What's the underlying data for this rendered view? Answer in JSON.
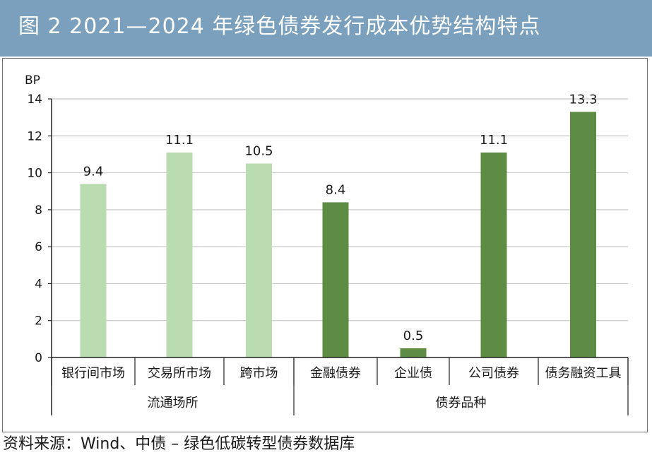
{
  "header": {
    "title": "图 2  2021—2024 年绿色债券发行成本优势结构特点"
  },
  "footer": {
    "source": "资料来源：Wind、中债 – 绿色低碳转型债券数据库"
  },
  "colors": {
    "banner": "#7aa0bd",
    "light_bar": "#b9dcb0",
    "dark_bar": "#5f8c45",
    "grid": "#c8c8c8",
    "axis": "#222222"
  },
  "chart_data": {
    "type": "bar",
    "unit_label": "BP",
    "ylim": [
      0,
      14
    ],
    "yticks": [
      0,
      2,
      4,
      6,
      8,
      10,
      12,
      14
    ],
    "grid": true,
    "categories": [
      "银行间市场",
      "交易所市场",
      "跨市场",
      "金融债券",
      "企业债",
      "公司债券",
      "债务融资工具"
    ],
    "values": [
      9.4,
      11.1,
      10.5,
      8.4,
      0.5,
      11.1,
      13.3
    ],
    "value_labels": [
      "9.4",
      "11.1",
      "10.5",
      "8.4",
      "0.5",
      "11.1",
      "13.3"
    ],
    "groups": [
      {
        "label": "流通场所",
        "categories": [
          "银行间市场",
          "交易所市场",
          "跨市场"
        ]
      },
      {
        "label": "债券品种",
        "categories": [
          "金融债券",
          "企业债",
          "公司债券",
          "债务融资工具"
        ]
      }
    ]
  }
}
